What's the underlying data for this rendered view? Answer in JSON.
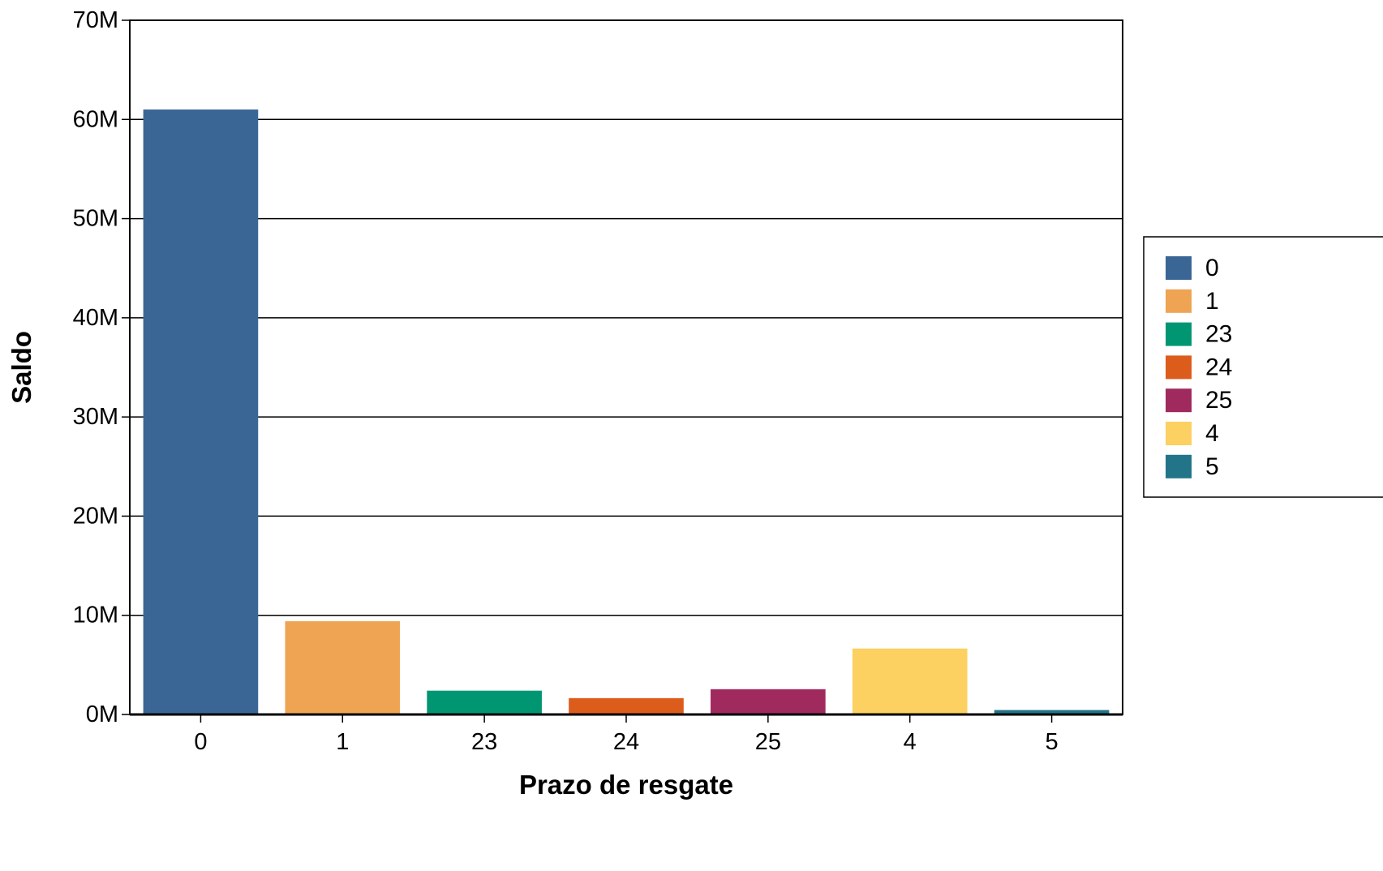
{
  "chart_data": {
    "type": "bar",
    "xlabel": "Prazo de resgate",
    "ylabel": "Saldo",
    "categories": [
      "0",
      "1",
      "23",
      "24",
      "25",
      "4",
      "5"
    ],
    "values": [
      61000000,
      9400000,
      2400000,
      1650000,
      2550000,
      6650000,
      450000
    ],
    "colors": [
      "#3a6696",
      "#eea453",
      "#019672",
      "#dc5c1c",
      "#a02a5e",
      "#fcd061",
      "#227489"
    ],
    "ylim": [
      0,
      70000000
    ],
    "yticks": [
      0,
      10000000,
      20000000,
      30000000,
      40000000,
      50000000,
      60000000,
      70000000
    ],
    "ytick_labels": [
      "0M",
      "10M",
      "20M",
      "30M",
      "40M",
      "50M",
      "60M",
      "70M"
    ],
    "grid": true,
    "legend": {
      "placement": "right",
      "entries": [
        "0",
        "1",
        "23",
        "24",
        "25",
        "4",
        "5"
      ]
    }
  }
}
